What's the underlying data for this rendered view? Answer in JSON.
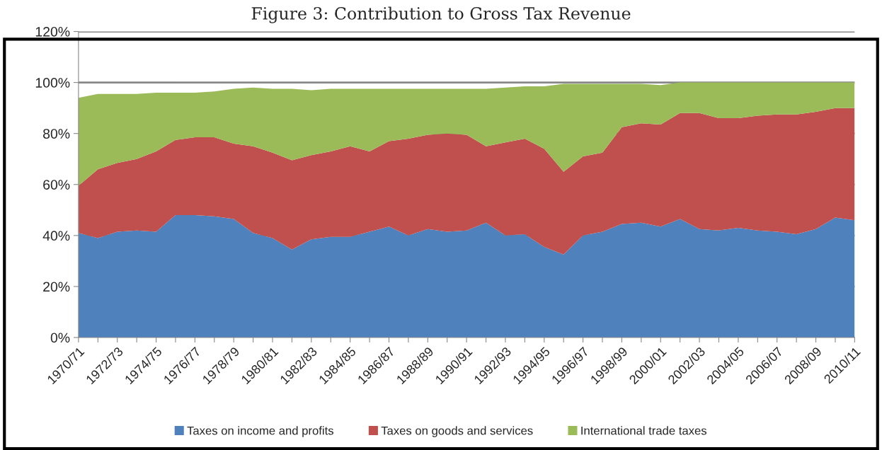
{
  "chart_data": {
    "type": "area",
    "title": "Figure 3: Contribution to Gross Tax Revenue",
    "stacked": true,
    "categories": [
      "1970/71",
      null,
      "1972/73",
      null,
      "1974/75",
      null,
      "1976/77",
      null,
      "1978/79",
      null,
      "1980/81",
      null,
      "1982/83",
      null,
      "1984/85",
      null,
      "1986/87",
      null,
      "1988/89",
      null,
      "1990/91",
      null,
      "1992/93",
      null,
      "1994/95",
      null,
      "1996/97",
      null,
      "1998/99",
      null,
      "2000/01",
      null,
      "2002/03",
      null,
      "2004/05",
      null,
      "2006/07",
      null,
      "2008/09",
      null,
      "2010/11"
    ],
    "series": [
      {
        "name": "Taxes on income and profits",
        "color": "#4f81bd",
        "values": [
          41,
          39,
          41.5,
          42,
          41.5,
          48,
          48,
          47.5,
          46.5,
          41,
          39,
          34.5,
          38.5,
          39.5,
          39.5,
          41.5,
          43.5,
          40,
          42.5,
          41.5,
          42,
          45,
          40,
          40.5,
          35.5,
          32.5,
          40,
          41.5,
          44.5,
          45,
          43.5,
          46.5,
          42.5,
          42,
          43,
          42,
          41.5,
          40.5,
          42.5,
          47,
          46
        ]
      },
      {
        "name": "Taxes on goods and services",
        "color": "#c0504d",
        "values": [
          18.5,
          27,
          27,
          28,
          31.5,
          29.5,
          30.5,
          31,
          29.5,
          34,
          33.5,
          35,
          33,
          33.5,
          35.5,
          31.5,
          33.5,
          38,
          37,
          38.5,
          37.5,
          30,
          36.5,
          37.5,
          38.5,
          32.5,
          31,
          31,
          38,
          39,
          40,
          41.5,
          45.5,
          44,
          43,
          45,
          46,
          47,
          46,
          43,
          44
        ]
      },
      {
        "name": "International trade taxes",
        "color": "#9bbb59",
        "values": [
          34.5,
          29.5,
          27,
          25.5,
          23,
          18.5,
          17.5,
          18,
          21.5,
          23,
          25,
          28,
          25.5,
          24.5,
          22.5,
          24.5,
          20.5,
          19.5,
          18,
          17.5,
          18,
          22.5,
          21.5,
          20.5,
          24.5,
          34.5,
          28.5,
          27,
          17,
          15.5,
          15.5,
          12,
          12,
          14,
          14,
          13,
          12.5,
          12.5,
          11.5,
          10,
          10
        ]
      }
    ],
    "ylim": [
      0,
      120
    ],
    "yticks": [
      {
        "value": 0,
        "label": "0%"
      },
      {
        "value": 20,
        "label": "20%"
      },
      {
        "value": 40,
        "label": "40%"
      },
      {
        "value": 60,
        "label": "60%"
      },
      {
        "value": 80,
        "label": "80%"
      },
      {
        "value": 100,
        "label": "100%"
      },
      {
        "value": 120,
        "label": "120%"
      }
    ],
    "grid": "y",
    "legend": "bottom"
  }
}
